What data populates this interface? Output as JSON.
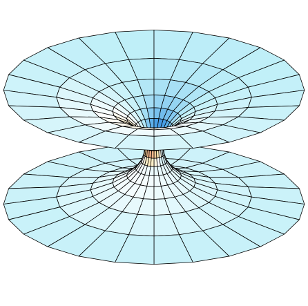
{
  "figure": {
    "description_kind": "parametric-surface",
    "surface": "catenoid",
    "mesh": {
      "around_divisions": 24,
      "height_divisions": 16
    },
    "shape": {
      "waist_radius": 0.36,
      "height_half_range": 1.25
    },
    "colormap": {
      "name": "cool-warm",
      "stops": [
        "#1f3fbf",
        "#4aa3e8",
        "#bfeff8",
        "#ffffff",
        "#ffe6a6",
        "#e89878",
        "#9c2a3a"
      ]
    },
    "mesh_line_color": "#000000",
    "background_color": "#ffffff"
  }
}
